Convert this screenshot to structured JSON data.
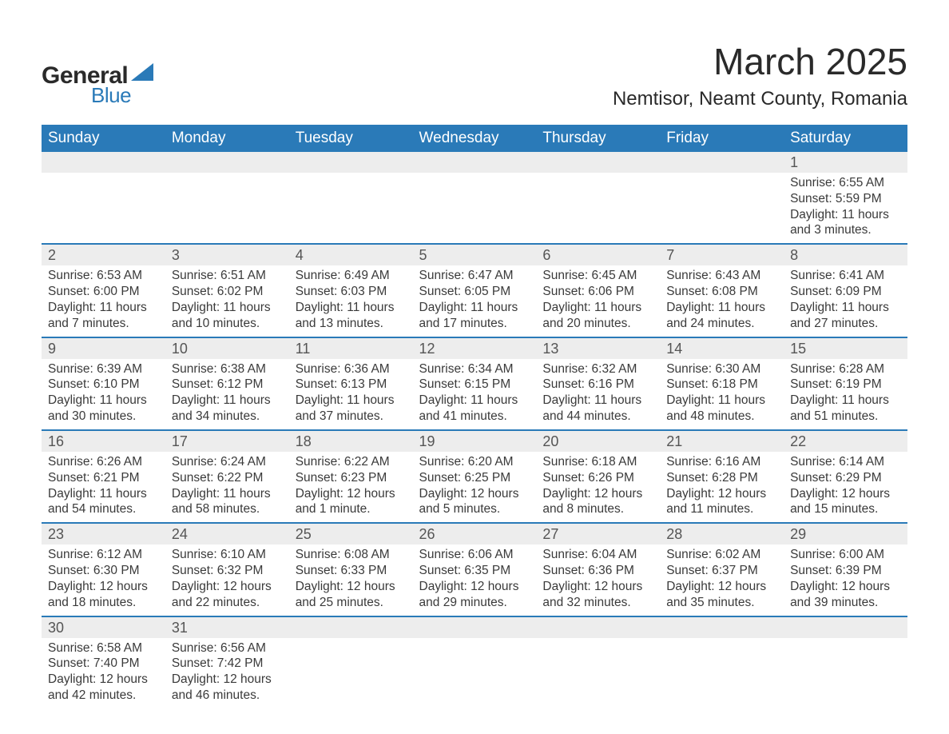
{
  "logo": {
    "word1": "General",
    "word2": "Blue",
    "triangle_color": "#2a7ab8"
  },
  "title": "March 2025",
  "location": "Nemtisor, Neamt County, Romania",
  "colors": {
    "header_bg": "#2a7ab8",
    "header_text": "#ffffff",
    "daynum_bg": "#ededed",
    "row_border": "#2a7ab8",
    "body_text": "#3a3a3a",
    "page_bg": "#ffffff"
  },
  "fonts": {
    "title_size_pt": 34,
    "location_size_pt": 18,
    "dayheader_size_pt": 14,
    "daynum_size_pt": 14,
    "cell_size_pt": 12
  },
  "day_headers": [
    "Sunday",
    "Monday",
    "Tuesday",
    "Wednesday",
    "Thursday",
    "Friday",
    "Saturday"
  ],
  "weeks": [
    [
      null,
      null,
      null,
      null,
      null,
      null,
      {
        "n": "1",
        "sr": "Sunrise: 6:55 AM",
        "ss": "Sunset: 5:59 PM",
        "d1": "Daylight: 11 hours",
        "d2": "and 3 minutes."
      }
    ],
    [
      {
        "n": "2",
        "sr": "Sunrise: 6:53 AM",
        "ss": "Sunset: 6:00 PM",
        "d1": "Daylight: 11 hours",
        "d2": "and 7 minutes."
      },
      {
        "n": "3",
        "sr": "Sunrise: 6:51 AM",
        "ss": "Sunset: 6:02 PM",
        "d1": "Daylight: 11 hours",
        "d2": "and 10 minutes."
      },
      {
        "n": "4",
        "sr": "Sunrise: 6:49 AM",
        "ss": "Sunset: 6:03 PM",
        "d1": "Daylight: 11 hours",
        "d2": "and 13 minutes."
      },
      {
        "n": "5",
        "sr": "Sunrise: 6:47 AM",
        "ss": "Sunset: 6:05 PM",
        "d1": "Daylight: 11 hours",
        "d2": "and 17 minutes."
      },
      {
        "n": "6",
        "sr": "Sunrise: 6:45 AM",
        "ss": "Sunset: 6:06 PM",
        "d1": "Daylight: 11 hours",
        "d2": "and 20 minutes."
      },
      {
        "n": "7",
        "sr": "Sunrise: 6:43 AM",
        "ss": "Sunset: 6:08 PM",
        "d1": "Daylight: 11 hours",
        "d2": "and 24 minutes."
      },
      {
        "n": "8",
        "sr": "Sunrise: 6:41 AM",
        "ss": "Sunset: 6:09 PM",
        "d1": "Daylight: 11 hours",
        "d2": "and 27 minutes."
      }
    ],
    [
      {
        "n": "9",
        "sr": "Sunrise: 6:39 AM",
        "ss": "Sunset: 6:10 PM",
        "d1": "Daylight: 11 hours",
        "d2": "and 30 minutes."
      },
      {
        "n": "10",
        "sr": "Sunrise: 6:38 AM",
        "ss": "Sunset: 6:12 PM",
        "d1": "Daylight: 11 hours",
        "d2": "and 34 minutes."
      },
      {
        "n": "11",
        "sr": "Sunrise: 6:36 AM",
        "ss": "Sunset: 6:13 PM",
        "d1": "Daylight: 11 hours",
        "d2": "and 37 minutes."
      },
      {
        "n": "12",
        "sr": "Sunrise: 6:34 AM",
        "ss": "Sunset: 6:15 PM",
        "d1": "Daylight: 11 hours",
        "d2": "and 41 minutes."
      },
      {
        "n": "13",
        "sr": "Sunrise: 6:32 AM",
        "ss": "Sunset: 6:16 PM",
        "d1": "Daylight: 11 hours",
        "d2": "and 44 minutes."
      },
      {
        "n": "14",
        "sr": "Sunrise: 6:30 AM",
        "ss": "Sunset: 6:18 PM",
        "d1": "Daylight: 11 hours",
        "d2": "and 48 minutes."
      },
      {
        "n": "15",
        "sr": "Sunrise: 6:28 AM",
        "ss": "Sunset: 6:19 PM",
        "d1": "Daylight: 11 hours",
        "d2": "and 51 minutes."
      }
    ],
    [
      {
        "n": "16",
        "sr": "Sunrise: 6:26 AM",
        "ss": "Sunset: 6:21 PM",
        "d1": "Daylight: 11 hours",
        "d2": "and 54 minutes."
      },
      {
        "n": "17",
        "sr": "Sunrise: 6:24 AM",
        "ss": "Sunset: 6:22 PM",
        "d1": "Daylight: 11 hours",
        "d2": "and 58 minutes."
      },
      {
        "n": "18",
        "sr": "Sunrise: 6:22 AM",
        "ss": "Sunset: 6:23 PM",
        "d1": "Daylight: 12 hours",
        "d2": "and 1 minute."
      },
      {
        "n": "19",
        "sr": "Sunrise: 6:20 AM",
        "ss": "Sunset: 6:25 PM",
        "d1": "Daylight: 12 hours",
        "d2": "and 5 minutes."
      },
      {
        "n": "20",
        "sr": "Sunrise: 6:18 AM",
        "ss": "Sunset: 6:26 PM",
        "d1": "Daylight: 12 hours",
        "d2": "and 8 minutes."
      },
      {
        "n": "21",
        "sr": "Sunrise: 6:16 AM",
        "ss": "Sunset: 6:28 PM",
        "d1": "Daylight: 12 hours",
        "d2": "and 11 minutes."
      },
      {
        "n": "22",
        "sr": "Sunrise: 6:14 AM",
        "ss": "Sunset: 6:29 PM",
        "d1": "Daylight: 12 hours",
        "d2": "and 15 minutes."
      }
    ],
    [
      {
        "n": "23",
        "sr": "Sunrise: 6:12 AM",
        "ss": "Sunset: 6:30 PM",
        "d1": "Daylight: 12 hours",
        "d2": "and 18 minutes."
      },
      {
        "n": "24",
        "sr": "Sunrise: 6:10 AM",
        "ss": "Sunset: 6:32 PM",
        "d1": "Daylight: 12 hours",
        "d2": "and 22 minutes."
      },
      {
        "n": "25",
        "sr": "Sunrise: 6:08 AM",
        "ss": "Sunset: 6:33 PM",
        "d1": "Daylight: 12 hours",
        "d2": "and 25 minutes."
      },
      {
        "n": "26",
        "sr": "Sunrise: 6:06 AM",
        "ss": "Sunset: 6:35 PM",
        "d1": "Daylight: 12 hours",
        "d2": "and 29 minutes."
      },
      {
        "n": "27",
        "sr": "Sunrise: 6:04 AM",
        "ss": "Sunset: 6:36 PM",
        "d1": "Daylight: 12 hours",
        "d2": "and 32 minutes."
      },
      {
        "n": "28",
        "sr": "Sunrise: 6:02 AM",
        "ss": "Sunset: 6:37 PM",
        "d1": "Daylight: 12 hours",
        "d2": "and 35 minutes."
      },
      {
        "n": "29",
        "sr": "Sunrise: 6:00 AM",
        "ss": "Sunset: 6:39 PM",
        "d1": "Daylight: 12 hours",
        "d2": "and 39 minutes."
      }
    ],
    [
      {
        "n": "30",
        "sr": "Sunrise: 6:58 AM",
        "ss": "Sunset: 7:40 PM",
        "d1": "Daylight: 12 hours",
        "d2": "and 42 minutes."
      },
      {
        "n": "31",
        "sr": "Sunrise: 6:56 AM",
        "ss": "Sunset: 7:42 PM",
        "d1": "Daylight: 12 hours",
        "d2": "and 46 minutes."
      },
      null,
      null,
      null,
      null,
      null
    ]
  ]
}
